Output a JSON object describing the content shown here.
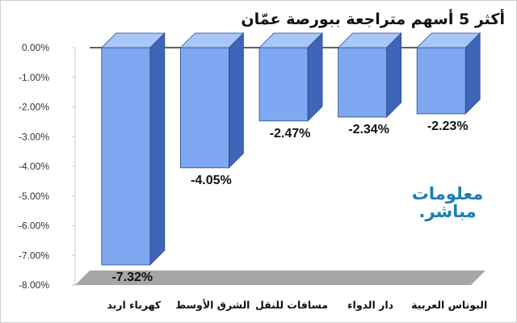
{
  "title": "أكثر 5 أسهم متراجعة ببورصة عمّان",
  "logo": {
    "line1": "معلومات",
    "line2": "مباشر."
  },
  "colors": {
    "bar_front": "#7ea8f1",
    "bar_side": "#3d65b8",
    "bar_top": "#a9c6f8",
    "floor": "#a6a6a6",
    "axis_line": "#2b2b2b"
  },
  "chart_data": {
    "type": "bar",
    "categories": [
      "كهرباء اربد",
      "الشرق الأوسط",
      "مسافات للنقل",
      "دار الدواء",
      "البوتاس العربية"
    ],
    "values": [
      -7.32,
      -4.05,
      -2.47,
      -2.34,
      -2.23
    ],
    "value_labels": [
      "-7.32%",
      "-4.05%",
      "-2.47%",
      "-2.34%",
      "-2.23%"
    ],
    "ylim": [
      -8,
      0
    ],
    "yticks": [
      "0.00%",
      "-1.00%",
      "-2.00%",
      "-3.00%",
      "-4.00%",
      "-5.00%",
      "-6.00%",
      "-7.00%",
      "-8.00%"
    ],
    "grid": false,
    "style": "3d"
  }
}
